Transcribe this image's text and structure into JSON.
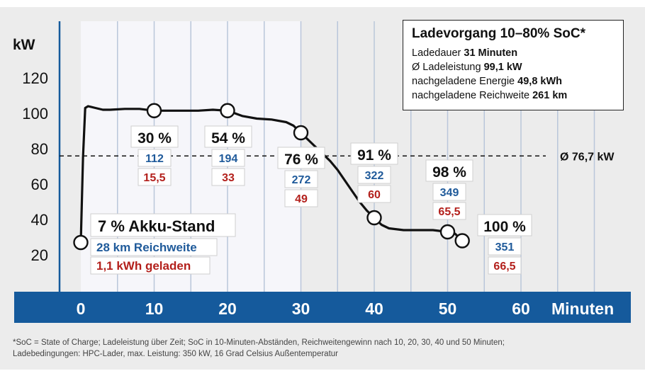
{
  "chart_data": {
    "type": "line",
    "ylabel": "kW",
    "xlabel": "Minuten",
    "xlim": [
      0,
      60
    ],
    "ylim": [
      15,
      135
    ],
    "yticks": [
      "20",
      "40",
      "60",
      "80",
      "100",
      "120"
    ],
    "xticks": [
      "0",
      "10",
      "20",
      "30",
      "40",
      "50",
      "60"
    ],
    "series": [
      {
        "x": [
          0,
          0.3,
          0.6,
          1,
          2,
          3,
          4,
          6,
          8,
          10,
          12,
          14,
          16,
          18,
          20,
          22,
          24,
          26,
          28,
          29,
          30,
          31,
          32,
          33,
          34,
          35,
          36,
          37,
          38,
          39,
          40,
          41,
          42,
          44,
          46,
          48,
          50,
          51,
          52
        ],
        "y": [
          27,
          75,
          103,
          104,
          103,
          102,
          102,
          102.5,
          102.5,
          101.5,
          101.5,
          101.5,
          101.5,
          102,
          101.5,
          98.5,
          97,
          96.5,
          95,
          93,
          89,
          85,
          81,
          77,
          73,
          68,
          62,
          56,
          50,
          45,
          41,
          37,
          35,
          34,
          34,
          34,
          33,
          32,
          28
        ]
      }
    ],
    "average": {
      "value": 76.7,
      "label": "Ø 76,7 kW"
    },
    "annotations": [
      {
        "x": 10,
        "y": 101.5,
        "soc": "30 %",
        "range_km": "112",
        "energy_kwh": "15,5"
      },
      {
        "x": 20,
        "y": 101.5,
        "soc": "54 %",
        "range_km": "194",
        "energy_kwh": "33"
      },
      {
        "x": 30,
        "y": 89,
        "soc": "76 %",
        "range_km": "272",
        "energy_kwh": "49"
      },
      {
        "x": 40,
        "y": 41,
        "soc": "91 %",
        "range_km": "322",
        "energy_kwh": "60"
      },
      {
        "x": 50,
        "y": 33,
        "soc": "98 %",
        "range_km": "349",
        "energy_kwh": "65,5"
      },
      {
        "x": 52,
        "y": 28,
        "soc": "100 %",
        "range_km": "351",
        "energy_kwh": "66,5"
      }
    ],
    "start": {
      "x": 0,
      "y": 27,
      "title": "7 % Akku-Stand",
      "range": "28 km Reichweite",
      "energy": "1,1 kWh geladen"
    }
  },
  "infobox": {
    "title": "Ladevorgang 10–80% SoC*",
    "rows": [
      {
        "label": "Ladedauer ",
        "value": "31 Minuten"
      },
      {
        "label": "Ø Ladeleistung ",
        "value": "99,1 kW"
      },
      {
        "label": "nachgeladene Energie ",
        "value": "49,8 kWh"
      },
      {
        "label": "nachgeladene Reichweite ",
        "value": "261 km"
      }
    ]
  },
  "footnote": {
    "line1": "*SoC = State of Charge; Ladeleistung über Zeit; SoC in 10-Minuten-Abständen, Reichweitengewinn nach 10, 20, 30, 40 und 50 Minuten;",
    "line2": "Ladebedingungen: HPC-Lader, max. Leistung: 350 kW, 16 Grad Celsius Außentemperatur"
  },
  "colors": {
    "axis_bar": "#155a9c",
    "line": "#111111",
    "range_blue": "#1f5a9a",
    "energy_red": "#b3201c",
    "highlight_band": "#f6f6fa"
  }
}
